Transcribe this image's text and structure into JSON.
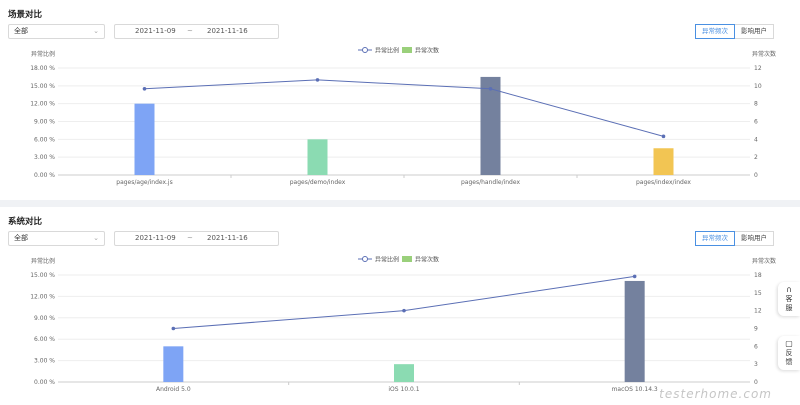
{
  "sections": [
    {
      "title": "场景对比",
      "filter": {
        "value": "全部"
      },
      "date_range": {
        "start": "2021-11-09",
        "separator": "~",
        "end": "2021-11-16"
      },
      "tabs": [
        {
          "label": "异常频次",
          "active": true
        },
        {
          "label": "影响用户",
          "active": false
        }
      ],
      "chart_data": {
        "type": "bar",
        "categories": [
          "pages/age/index.js",
          "pages/demo/index",
          "pages/handle/index",
          "pages/index/index"
        ],
        "legend": [
          "异常比例",
          "异常次数"
        ],
        "y_left": {
          "label": "异常比例",
          "ticks": [
            "0.00 %",
            "3.00 %",
            "6.00 %",
            "9.00 %",
            "12.00 %",
            "15.00 %",
            "18.00 %"
          ],
          "range": [
            0,
            18
          ]
        },
        "y_right": {
          "label": "异常次数",
          "ticks": [
            "0",
            "2",
            "4",
            "6",
            "8",
            "10",
            "12"
          ],
          "range": [
            0,
            12
          ]
        },
        "series": [
          {
            "name": "异常次数",
            "type": "bar",
            "values": [
              8,
              4,
              11,
              3
            ],
            "colors": [
              "#7ea4f5",
              "#8bdbb2",
              "#74819e",
              "#f2c553"
            ]
          },
          {
            "name": "异常比例",
            "type": "line",
            "values": [
              14.5,
              16,
              14.5,
              6.5
            ],
            "color": "#5b6fb5"
          }
        ]
      }
    },
    {
      "title": "系统对比",
      "filter": {
        "value": "全部"
      },
      "date_range": {
        "start": "2021-11-09",
        "separator": "~",
        "end": "2021-11-16"
      },
      "tabs": [
        {
          "label": "异常频次",
          "active": true
        },
        {
          "label": "影响用户",
          "active": false
        }
      ],
      "chart_data": {
        "type": "bar",
        "categories": [
          "Android 5.0",
          "iOS 10.0.1",
          "macOS 10.14.3"
        ],
        "legend": [
          "异常比例",
          "异常次数"
        ],
        "y_left": {
          "label": "异常比例",
          "ticks": [
            "0.00 %",
            "3.00 %",
            "6.00 %",
            "9.00 %",
            "12.00 %",
            "15.00 %"
          ],
          "range": [
            0,
            15
          ]
        },
        "y_right": {
          "label": "异常次数",
          "ticks": [
            "0",
            "3",
            "6",
            "9",
            "12",
            "15",
            "18"
          ],
          "range": [
            0,
            18
          ]
        },
        "series": [
          {
            "name": "异常次数",
            "type": "bar",
            "values": [
              6,
              3,
              17
            ],
            "colors": [
              "#7ea4f5",
              "#8bdbb2",
              "#74819e"
            ]
          },
          {
            "name": "异常比例",
            "type": "line",
            "values": [
              7.5,
              10,
              14.8
            ],
            "color": "#5b6fb5"
          }
        ]
      }
    }
  ],
  "side_buttons": [
    {
      "icon": "headset-icon",
      "label": "客服"
    },
    {
      "icon": "feedback-icon",
      "label": "反馈"
    }
  ],
  "watermark": "testerhome.com"
}
